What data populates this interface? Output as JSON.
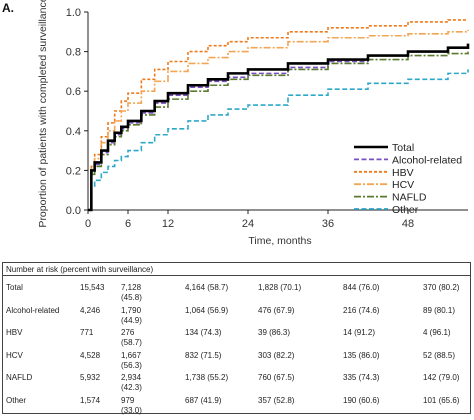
{
  "panel_label": "A.",
  "colors": {
    "total": "#000000",
    "alcohol": "#7a4fbf",
    "hbv": "#f07a1a",
    "hcv": "#f2a552",
    "nafld": "#5a7a2e",
    "other": "#2ea8c8"
  },
  "chart_data": {
    "type": "line",
    "title": "",
    "xlabel": "Time, months",
    "ylabel": "Proportion of patients with completed surveillance",
    "xlim": [
      0,
      57
    ],
    "ylim": [
      0,
      1.0
    ],
    "x_ticks": [
      "0",
      "6",
      "12",
      "24",
      "36",
      "48"
    ],
    "x_tick_values": [
      0,
      6,
      12,
      24,
      36,
      48
    ],
    "y_ticks": [
      "0.0",
      "0.2",
      "0.4",
      "0.6",
      "0.8",
      "1.0"
    ],
    "y_tick_values": [
      0,
      0.2,
      0.4,
      0.6,
      0.8,
      1.0
    ],
    "legend_position": "bottom-right",
    "series": [
      {
        "name": "Total",
        "key": "total",
        "style": "solid",
        "x": [
          0,
          0.5,
          1,
          2,
          3,
          4,
          5,
          6,
          8,
          10,
          12,
          15,
          18,
          21,
          24,
          30,
          36,
          42,
          48,
          54,
          57
        ],
        "y": [
          0,
          0.2,
          0.24,
          0.3,
          0.35,
          0.39,
          0.42,
          0.45,
          0.5,
          0.55,
          0.59,
          0.63,
          0.66,
          0.69,
          0.71,
          0.74,
          0.76,
          0.78,
          0.8,
          0.82,
          0.84
        ]
      },
      {
        "name": "Alcohol-related",
        "key": "alcohol",
        "style": "dash",
        "x": [
          0,
          0.5,
          1,
          2,
          3,
          4,
          5,
          6,
          8,
          10,
          12,
          15,
          18,
          21,
          24,
          30,
          36,
          42,
          48,
          54,
          57
        ],
        "y": [
          0,
          0.19,
          0.23,
          0.29,
          0.34,
          0.38,
          0.41,
          0.44,
          0.49,
          0.54,
          0.58,
          0.62,
          0.65,
          0.67,
          0.69,
          0.72,
          0.75,
          0.78,
          0.8,
          0.82,
          0.84
        ]
      },
      {
        "name": "HBV",
        "key": "hbv",
        "style": "shortdash",
        "x": [
          0,
          0.5,
          1,
          2,
          3,
          4,
          5,
          6,
          8,
          10,
          12,
          15,
          18,
          21,
          24,
          30,
          36,
          42,
          48,
          54,
          57
        ],
        "y": [
          0,
          0.22,
          0.28,
          0.37,
          0.44,
          0.5,
          0.55,
          0.59,
          0.66,
          0.71,
          0.75,
          0.8,
          0.83,
          0.85,
          0.87,
          0.9,
          0.92,
          0.93,
          0.95,
          0.96,
          0.96
        ]
      },
      {
        "name": "HCV",
        "key": "hcv",
        "style": "dashdot",
        "x": [
          0,
          0.5,
          1,
          2,
          3,
          4,
          5,
          6,
          8,
          10,
          12,
          15,
          18,
          21,
          24,
          30,
          36,
          42,
          48,
          54,
          57
        ],
        "y": [
          0,
          0.21,
          0.26,
          0.34,
          0.4,
          0.45,
          0.5,
          0.54,
          0.6,
          0.65,
          0.7,
          0.74,
          0.77,
          0.8,
          0.82,
          0.85,
          0.87,
          0.88,
          0.89,
          0.9,
          0.91
        ]
      },
      {
        "name": "NAFLD",
        "key": "nafld",
        "style": "dashdot",
        "x": [
          0,
          0.5,
          1,
          2,
          3,
          4,
          5,
          6,
          8,
          10,
          12,
          15,
          18,
          21,
          24,
          30,
          36,
          42,
          48,
          54,
          57
        ],
        "y": [
          0,
          0.18,
          0.22,
          0.28,
          0.33,
          0.37,
          0.4,
          0.43,
          0.48,
          0.52,
          0.56,
          0.6,
          0.63,
          0.66,
          0.68,
          0.71,
          0.74,
          0.76,
          0.78,
          0.79,
          0.8
        ]
      },
      {
        "name": "Other",
        "key": "other",
        "style": "dash",
        "x": [
          0,
          0.5,
          1,
          2,
          3,
          4,
          5,
          6,
          8,
          10,
          12,
          15,
          18,
          21,
          24,
          30,
          36,
          42,
          48,
          54,
          57
        ],
        "y": [
          0,
          0.12,
          0.15,
          0.19,
          0.22,
          0.25,
          0.27,
          0.3,
          0.34,
          0.38,
          0.41,
          0.45,
          0.48,
          0.51,
          0.53,
          0.58,
          0.61,
          0.64,
          0.66,
          0.69,
          0.71
        ]
      }
    ]
  },
  "risk_table": {
    "caption": "Number at risk (percent with surveillance)",
    "rows": [
      {
        "label": "Total",
        "cells": [
          [
            "15,543"
          ],
          [
            "7,128",
            "(45.8)"
          ],
          [
            "4,164 (58.7)"
          ],
          [
            "1,828 (70.1)"
          ],
          [
            "844 (76.0)"
          ],
          [
            "370 (80.2)"
          ]
        ]
      },
      {
        "label": "Alcohol-related",
        "cells": [
          [
            "4,246"
          ],
          [
            "1,790",
            "(44.9)"
          ],
          [
            "1,064 (56.9)"
          ],
          [
            "476 (67.9)"
          ],
          [
            "216 (74.6)"
          ],
          [
            "89 (80.1)"
          ]
        ]
      },
      {
        "label": "HBV",
        "cells": [
          [
            "771"
          ],
          [
            "276",
            "(58.7)"
          ],
          [
            "134 (74.3)"
          ],
          [
            "39 (86.3)"
          ],
          [
            "14 (91.2)"
          ],
          [
            "4 (96.1)"
          ]
        ]
      },
      {
        "label": "HCV",
        "cells": [
          [
            "4,528"
          ],
          [
            "1,667",
            "(56.3)"
          ],
          [
            "832 (71.5)"
          ],
          [
            "303 (82.2)"
          ],
          [
            "135 (86.0)"
          ],
          [
            "52 (88.5)"
          ]
        ]
      },
      {
        "label": "NAFLD",
        "cells": [
          [
            "5,932"
          ],
          [
            "2,934",
            "(42.3)"
          ],
          [
            "1,738 (55.2)"
          ],
          [
            "760 (67.5)"
          ],
          [
            "335 (74.3)"
          ],
          [
            "142 (79.0)"
          ]
        ]
      },
      {
        "label": "Other",
        "cells": [
          [
            "1,574"
          ],
          [
            "979",
            "(33.0)"
          ],
          [
            "687 (41.9)"
          ],
          [
            "357 (52.8)"
          ],
          [
            "190 (60.6)"
          ],
          [
            "101 (65.6)"
          ]
        ]
      }
    ]
  }
}
